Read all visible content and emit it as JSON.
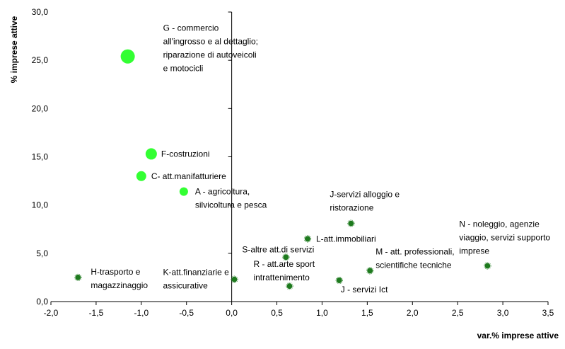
{
  "chart_data": {
    "type": "scatter",
    "xlabel": "var.% imprese attive",
    "ylabel": "% imprese attive",
    "xlim": [
      -2.0,
      3.5
    ],
    "ylim": [
      0.0,
      30.0
    ],
    "x_ticks": [
      "-2,0",
      "-1,5",
      "-1,0",
      "-0,5",
      "0,0",
      "0,5",
      "1,0",
      "1,5",
      "2,0",
      "2,5",
      "3,0",
      "3,5"
    ],
    "y_ticks": [
      "0,0",
      "5,0",
      "10,0",
      "15,0",
      "20,0",
      "25,0",
      "30,0"
    ],
    "grid": false,
    "colors": {
      "highlight": "#33ff33",
      "normal": "#1e7a1e"
    },
    "points": [
      {
        "label": [
          "G - commercio",
          "all'ingrosso e al dettaglio;",
          "riparazione di autoveicoli",
          "e motocicli"
        ],
        "x": -1.15,
        "y": 25.4,
        "highlight": true,
        "size": "xl"
      },
      {
        "label": [
          "F-costruzioni"
        ],
        "x": -0.89,
        "y": 15.3,
        "highlight": true,
        "size": "l"
      },
      {
        "label": [
          "C- att.manifatturiere"
        ],
        "x": -1.0,
        "y": 13.0,
        "highlight": true,
        "size": "m"
      },
      {
        "label": [
          "A - agricoltura,",
          "silvicoltura e pesca"
        ],
        "x": -0.53,
        "y": 11.4,
        "highlight": true,
        "size": "s"
      },
      {
        "label": [
          "J-servizi alloggio e",
          "ristorazione"
        ],
        "x": 1.32,
        "y": 8.1,
        "highlight": false,
        "size": "xs"
      },
      {
        "label": [
          "L-att.immobiliari"
        ],
        "x": 0.84,
        "y": 6.5,
        "highlight": false,
        "size": "xs"
      },
      {
        "label": [
          "S-altre att.di servizi"
        ],
        "x": 0.6,
        "y": 4.6,
        "highlight": false,
        "size": "xs"
      },
      {
        "label": [
          "N - noleggio, agenzie",
          "viaggio, servizi supporto",
          "imprese"
        ],
        "x": 2.83,
        "y": 3.7,
        "highlight": false,
        "size": "xs"
      },
      {
        "label": [
          "M - att. professionali,",
          "scientifiche tecniche"
        ],
        "x": 1.53,
        "y": 3.2,
        "highlight": false,
        "size": "xs"
      },
      {
        "label": [
          "H-trasporto e",
          "magazzinaggio"
        ],
        "x": -1.7,
        "y": 2.5,
        "highlight": false,
        "size": "xs"
      },
      {
        "label": [
          "K-att.finanziarie e",
          "assicurative"
        ],
        "x": 0.03,
        "y": 2.3,
        "highlight": false,
        "size": "xs"
      },
      {
        "label": [
          "R - att.arte sport",
          "intrattenimento"
        ],
        "x": 0.64,
        "y": 1.6,
        "highlight": false,
        "size": "xs"
      },
      {
        "label": [
          "J - servizi Ict"
        ],
        "x": 1.19,
        "y": 2.2,
        "highlight": false,
        "size": "xs"
      }
    ]
  }
}
